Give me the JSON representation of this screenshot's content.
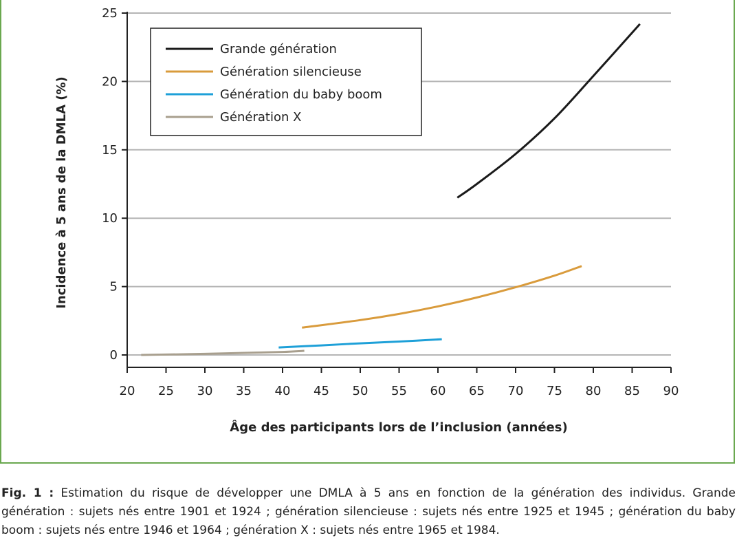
{
  "chart_data": {
    "type": "line",
    "xlabel": "Âge des participants lors de l’inclusion (années)",
    "ylabel": "Incidence à 5 ans de la DMLA (%)",
    "xlim": [
      20,
      90
    ],
    "ylim": [
      0,
      25
    ],
    "x_ticks": [
      20,
      25,
      30,
      35,
      40,
      45,
      50,
      55,
      60,
      65,
      70,
      75,
      80,
      85,
      90
    ],
    "y_ticks": [
      0,
      5,
      10,
      15,
      20,
      25
    ],
    "grid": "horizontal",
    "legend_position": "top-left",
    "series": [
      {
        "name": "Grande génération",
        "color": "#1a1a1a",
        "x": [
          62.5,
          65,
          70,
          75,
          80,
          86
        ],
        "y": [
          11.5,
          12.5,
          14.7,
          17.3,
          20.4,
          24.2
        ]
      },
      {
        "name": "Génération silencieuse",
        "color": "#d99b3c",
        "x": [
          42.5,
          50,
          55,
          60,
          65,
          70,
          75,
          78.5
        ],
        "y": [
          2.0,
          2.55,
          3.0,
          3.55,
          4.2,
          4.95,
          5.8,
          6.5
        ]
      },
      {
        "name": "Génération du baby boom",
        "color": "#1ea0d8",
        "x": [
          39.5,
          45,
          50,
          55,
          60.5
        ],
        "y": [
          0.55,
          0.7,
          0.85,
          0.98,
          1.15
        ]
      },
      {
        "name": "Génération X",
        "color": "#a89f8e",
        "x": [
          21.8,
          25,
          30,
          35,
          40,
          42.8
        ],
        "y": [
          0.0,
          0.03,
          0.08,
          0.15,
          0.22,
          0.3
        ]
      }
    ]
  },
  "caption": {
    "label": "Fig. 1 :",
    "text": "Estimation du risque de développer une DMLA à 5 ans en fonction de la génération des individus. Grande génération : sujets nés entre 1901 et 1924 ; génération silencieuse : sujets nés entre 1925 et 1945 ; génération du baby boom : sujets nés entre 1946 et 1964 ; génération X : sujets nés entre 1965 et 1984."
  }
}
